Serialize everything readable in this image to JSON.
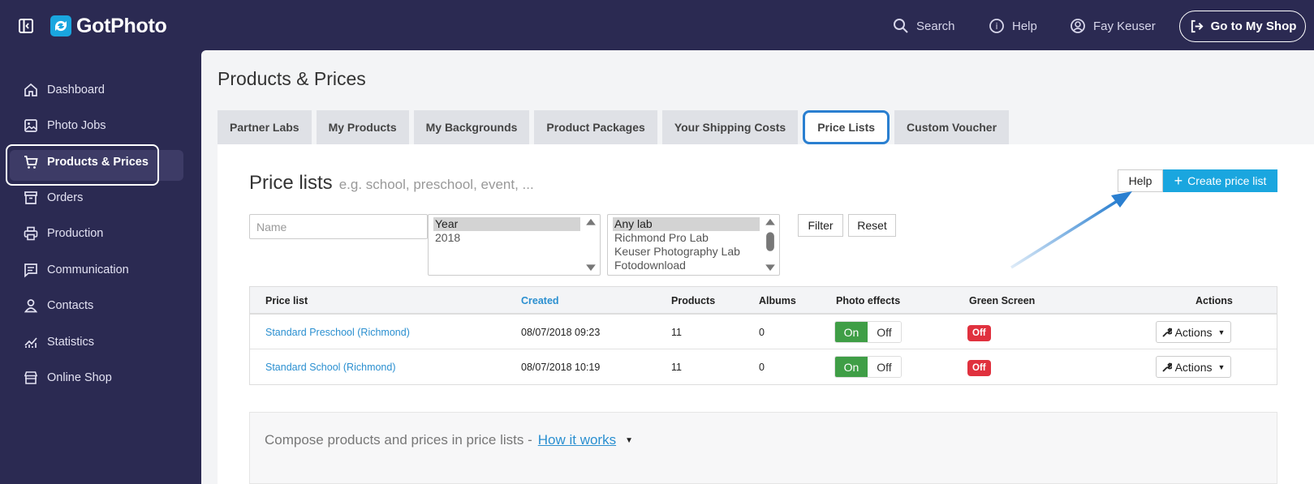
{
  "app": {
    "name": "GotPhoto"
  },
  "topnav": {
    "search": "Search",
    "help": "Help",
    "user": "Fay Keuser",
    "shop_button": "Go to My Shop"
  },
  "sidebar": {
    "items": [
      {
        "label": "Dashboard",
        "icon": "home-icon"
      },
      {
        "label": "Photo Jobs",
        "icon": "image-icon"
      },
      {
        "label": "Products & Prices",
        "icon": "cart-icon",
        "active": true
      },
      {
        "label": "Orders",
        "icon": "box-icon"
      },
      {
        "label": "Production",
        "icon": "printer-icon"
      },
      {
        "label": "Communication",
        "icon": "message-icon"
      },
      {
        "label": "Contacts",
        "icon": "person-icon"
      },
      {
        "label": "Statistics",
        "icon": "chart-icon"
      },
      {
        "label": "Online Shop",
        "icon": "store-icon"
      }
    ]
  },
  "page": {
    "title": "Products & Prices"
  },
  "tabs": [
    {
      "label": "Partner Labs"
    },
    {
      "label": "My Products"
    },
    {
      "label": "My Backgrounds"
    },
    {
      "label": "Product Packages"
    },
    {
      "label": "Your Shipping Costs"
    },
    {
      "label": "Price Lists",
      "active": true
    },
    {
      "label": "Custom Voucher"
    }
  ],
  "panel": {
    "title": "Price lists",
    "hint": "e.g. school, preschool, event, ...",
    "help_button": "Help",
    "create_button": "Create price list"
  },
  "filters": {
    "name_placeholder": "Name",
    "year_options": [
      "Year",
      "2018"
    ],
    "lab_options": [
      "Any lab",
      "Richmond Pro Lab",
      "Keuser Photography Lab",
      "Fotodownload"
    ],
    "filter_button": "Filter",
    "reset_button": "Reset"
  },
  "table": {
    "headers": {
      "price_list": "Price list",
      "created": "Created",
      "products": "Products",
      "albums": "Albums",
      "photo_effects": "Photo effects",
      "green_screen": "Green Screen",
      "actions": "Actions"
    },
    "rows": [
      {
        "name": "Standard Preschool (Richmond)",
        "created": "08/07/2018 09:23",
        "products": "11",
        "albums": "0",
        "effects_on": "On",
        "effects_off": "Off",
        "green_screen": "Off",
        "actions": "Actions"
      },
      {
        "name": "Standard School (Richmond)",
        "created": "08/07/2018 10:19",
        "products": "11",
        "albums": "0",
        "effects_on": "On",
        "effects_off": "Off",
        "green_screen": "Off",
        "actions": "Actions"
      }
    ]
  },
  "howto": {
    "text": "Compose products and prices in price lists -",
    "link": "How it works"
  },
  "colors": {
    "sidebar_bg": "#2b2a52",
    "accent": "#1aa6df",
    "link": "#2a8fd0",
    "on_green": "#3f9e46",
    "off_red": "#e0313e",
    "highlight": "#2a7fd0"
  }
}
